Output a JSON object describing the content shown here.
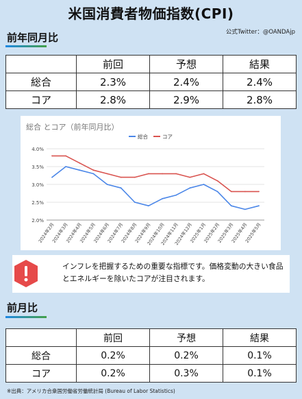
{
  "header": {
    "title": "米国消費者物価指数(CPI)",
    "credit": "公式Twitter：@OANDAjp"
  },
  "yoy_section": {
    "title": "前年同月比",
    "columns": [
      "前回",
      "予想",
      "結果"
    ],
    "rows": [
      {
        "label": "総合",
        "values": [
          "2.3%",
          "2.4%",
          "2.4%"
        ]
      },
      {
        "label": "コア",
        "values": [
          "2.8%",
          "2.9%",
          "2.8%"
        ]
      }
    ]
  },
  "chart_data": {
    "type": "line",
    "title": "総合 とコア（前年同月比）",
    "categories": [
      "2024年2月",
      "2024年3月",
      "2024年4月",
      "2024年5月",
      "2024年6月",
      "2024年7月",
      "2024年8月",
      "2024年9月",
      "2024年10月",
      "2024年11月",
      "2024年12月",
      "2025年1月",
      "2025年2月",
      "2025年3月",
      "2025年4月",
      "2025年5月"
    ],
    "series": [
      {
        "name": "総合",
        "color": "#4a86e8",
        "values": [
          3.2,
          3.5,
          3.4,
          3.3,
          3.0,
          2.9,
          2.5,
          2.4,
          2.6,
          2.7,
          2.9,
          3.0,
          2.8,
          2.4,
          2.3,
          2.4
        ]
      },
      {
        "name": "コア",
        "color": "#d9534f",
        "values": [
          3.8,
          3.8,
          3.6,
          3.4,
          3.3,
          3.2,
          3.2,
          3.3,
          3.3,
          3.3,
          3.2,
          3.3,
          3.1,
          2.8,
          2.8,
          2.8
        ]
      }
    ],
    "yticks": [
      "4.0%",
      "3.5%",
      "3.0%",
      "2.5%",
      "2.0%"
    ],
    "ylim": [
      2.0,
      4.0
    ],
    "legend": "top-center",
    "grid": true
  },
  "note": {
    "icon": "warning-icon",
    "text": "インフレを把握するための重要な指標です。価格変動の大きい食品とエネルギーを除いたコアが注目されます。"
  },
  "mom_section": {
    "title": "前月比",
    "columns": [
      "前回",
      "予想",
      "結果"
    ],
    "rows": [
      {
        "label": "総合",
        "values": [
          "0.2%",
          "0.2%",
          "0.1%"
        ]
      },
      {
        "label": "コア",
        "values": [
          "0.2%",
          "0.3%",
          "0.1%"
        ]
      }
    ]
  },
  "source": "※出典：アメリカ合衆国労働省労働統計局 (Bureau of Labor Statistics)"
}
